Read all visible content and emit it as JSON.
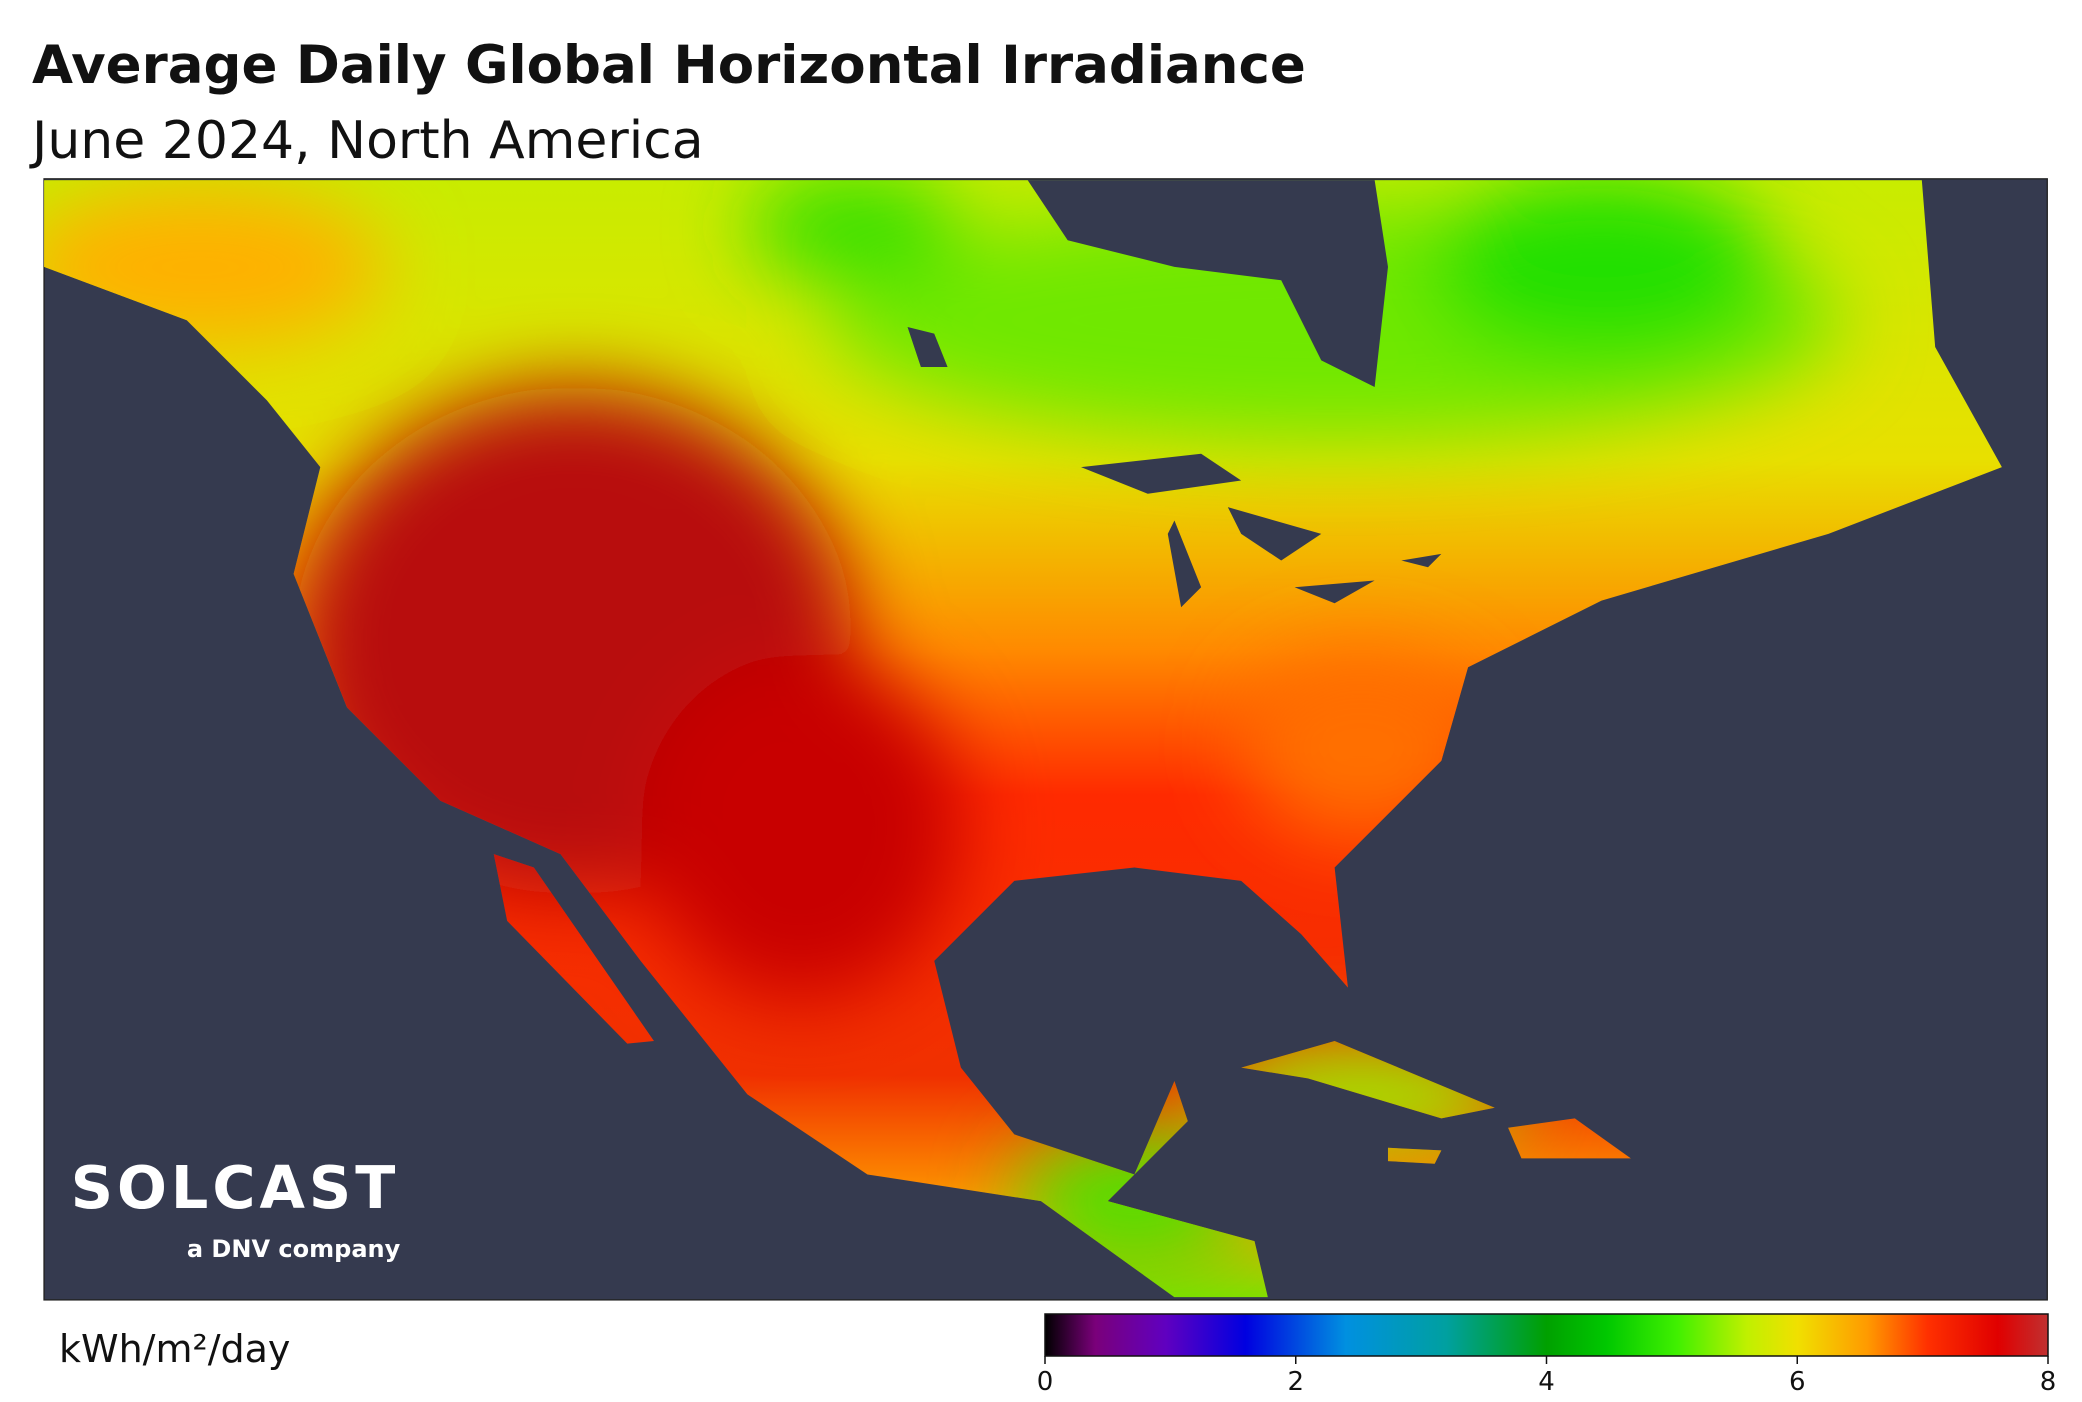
{
  "title": "Average Daily Global Horizontal Irradiance",
  "subtitle": "June 2024, North America",
  "logo": {
    "name": "SOLCAST",
    "tagline": "a DNV company"
  },
  "colorbar": {
    "label": "kWh/m²/day",
    "lim": [
      0,
      8
    ],
    "ticks": [
      0,
      2,
      4,
      6,
      8
    ]
  }
}
